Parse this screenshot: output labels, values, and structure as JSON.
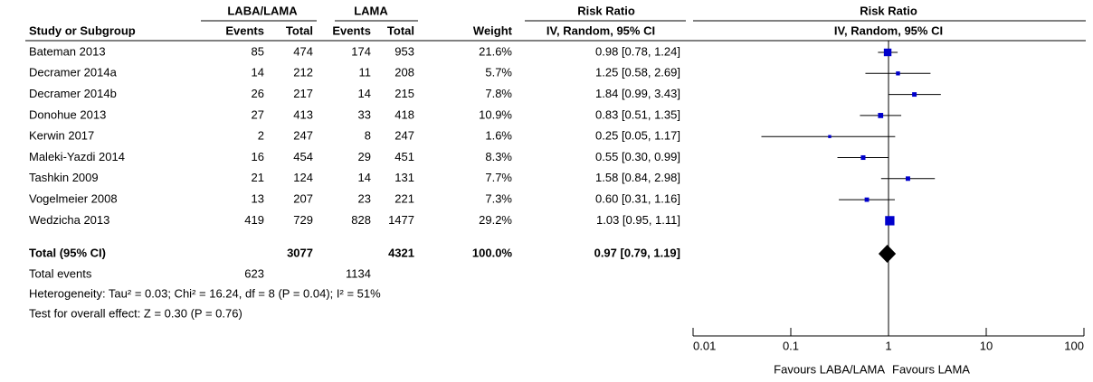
{
  "chart_data": {
    "type": "forest",
    "group_headers": [
      "LABA/LAMA",
      "LAMA",
      "Risk Ratio",
      "Risk Ratio"
    ],
    "column_headers": [
      "Study or Subgroup",
      "Events",
      "Total",
      "Events",
      "Total",
      "Weight",
      "IV, Random, 95% CI",
      "IV, Random, 95% CI"
    ],
    "studies": [
      {
        "name": "Bateman 2013",
        "events_1": 85,
        "total_1": 474,
        "events_2": 174,
        "total_2": 953,
        "weight": 21.6,
        "weight_label": "21.6%",
        "ratio": 0.98,
        "ci": [
          0.78,
          1.24
        ],
        "ci_label": "0.98 [0.78, 1.24]"
      },
      {
        "name": "Decramer 2014a",
        "events_1": 14,
        "total_1": 212,
        "events_2": 11,
        "total_2": 208,
        "weight": 5.7,
        "weight_label": "5.7%",
        "ratio": 1.25,
        "ci": [
          0.58,
          2.69
        ],
        "ci_label": "1.25 [0.58, 2.69]"
      },
      {
        "name": "Decramer 2014b",
        "events_1": 26,
        "total_1": 217,
        "events_2": 14,
        "total_2": 215,
        "weight": 7.8,
        "weight_label": "7.8%",
        "ratio": 1.84,
        "ci": [
          0.99,
          3.43
        ],
        "ci_label": "1.84 [0.99, 3.43]"
      },
      {
        "name": "Donohue 2013",
        "events_1": 27,
        "total_1": 413,
        "events_2": 33,
        "total_2": 418,
        "weight": 10.9,
        "weight_label": "10.9%",
        "ratio": 0.83,
        "ci": [
          0.51,
          1.35
        ],
        "ci_label": "0.83 [0.51, 1.35]"
      },
      {
        "name": "Kerwin 2017",
        "events_1": 2,
        "total_1": 247,
        "events_2": 8,
        "total_2": 247,
        "weight": 1.6,
        "weight_label": "1.6%",
        "ratio": 0.25,
        "ci": [
          0.05,
          1.17
        ],
        "ci_label": "0.25 [0.05, 1.17]"
      },
      {
        "name": "Maleki-Yazdi 2014",
        "events_1": 16,
        "total_1": 454,
        "events_2": 29,
        "total_2": 451,
        "weight": 8.3,
        "weight_label": "8.3%",
        "ratio": 0.55,
        "ci": [
          0.3,
          0.99
        ],
        "ci_label": "0.55 [0.30, 0.99]"
      },
      {
        "name": "Tashkin 2009",
        "events_1": 21,
        "total_1": 124,
        "events_2": 14,
        "total_2": 131,
        "weight": 7.7,
        "weight_label": "7.7%",
        "ratio": 1.58,
        "ci": [
          0.84,
          2.98
        ],
        "ci_label": "1.58 [0.84, 2.98]"
      },
      {
        "name": "Vogelmeier 2008",
        "events_1": 13,
        "total_1": 207,
        "events_2": 23,
        "total_2": 221,
        "weight": 7.3,
        "weight_label": "7.3%",
        "ratio": 0.6,
        "ci": [
          0.31,
          1.16
        ],
        "ci_label": "0.60 [0.31, 1.16]"
      },
      {
        "name": "Wedzicha 2013",
        "events_1": 419,
        "total_1": 729,
        "events_2": 828,
        "total_2": 1477,
        "weight": 29.2,
        "weight_label": "29.2%",
        "ratio": 1.03,
        "ci": [
          0.95,
          1.11
        ],
        "ci_label": "1.03 [0.95, 1.11]"
      }
    ],
    "total": {
      "name": "Total (95% CI)",
      "total_1": 3077,
      "total_2": 4321,
      "weight": 100.0,
      "weight_label": "100.0%",
      "ratio": 0.97,
      "ci": [
        0.79,
        1.19
      ],
      "ci_label": "0.97 [0.79, 1.19]"
    },
    "total_events": {
      "label": "Total events",
      "events_1": 623,
      "events_2": 1134
    },
    "heterogeneity": "Heterogeneity: Tau² = 0.03; Chi² = 16.24, df = 8 (P = 0.04); I² = 51%",
    "overall_effect": "Test for overall effect: Z = 0.30 (P = 0.76)",
    "log_scale": true,
    "xlim": [
      0.01,
      100
    ],
    "xticks": [
      0.01,
      0.1,
      1,
      10,
      100
    ],
    "x_labels": [
      "Favours LABA/LAMA",
      "Favours LAMA"
    ],
    "color": "#0000cc"
  }
}
